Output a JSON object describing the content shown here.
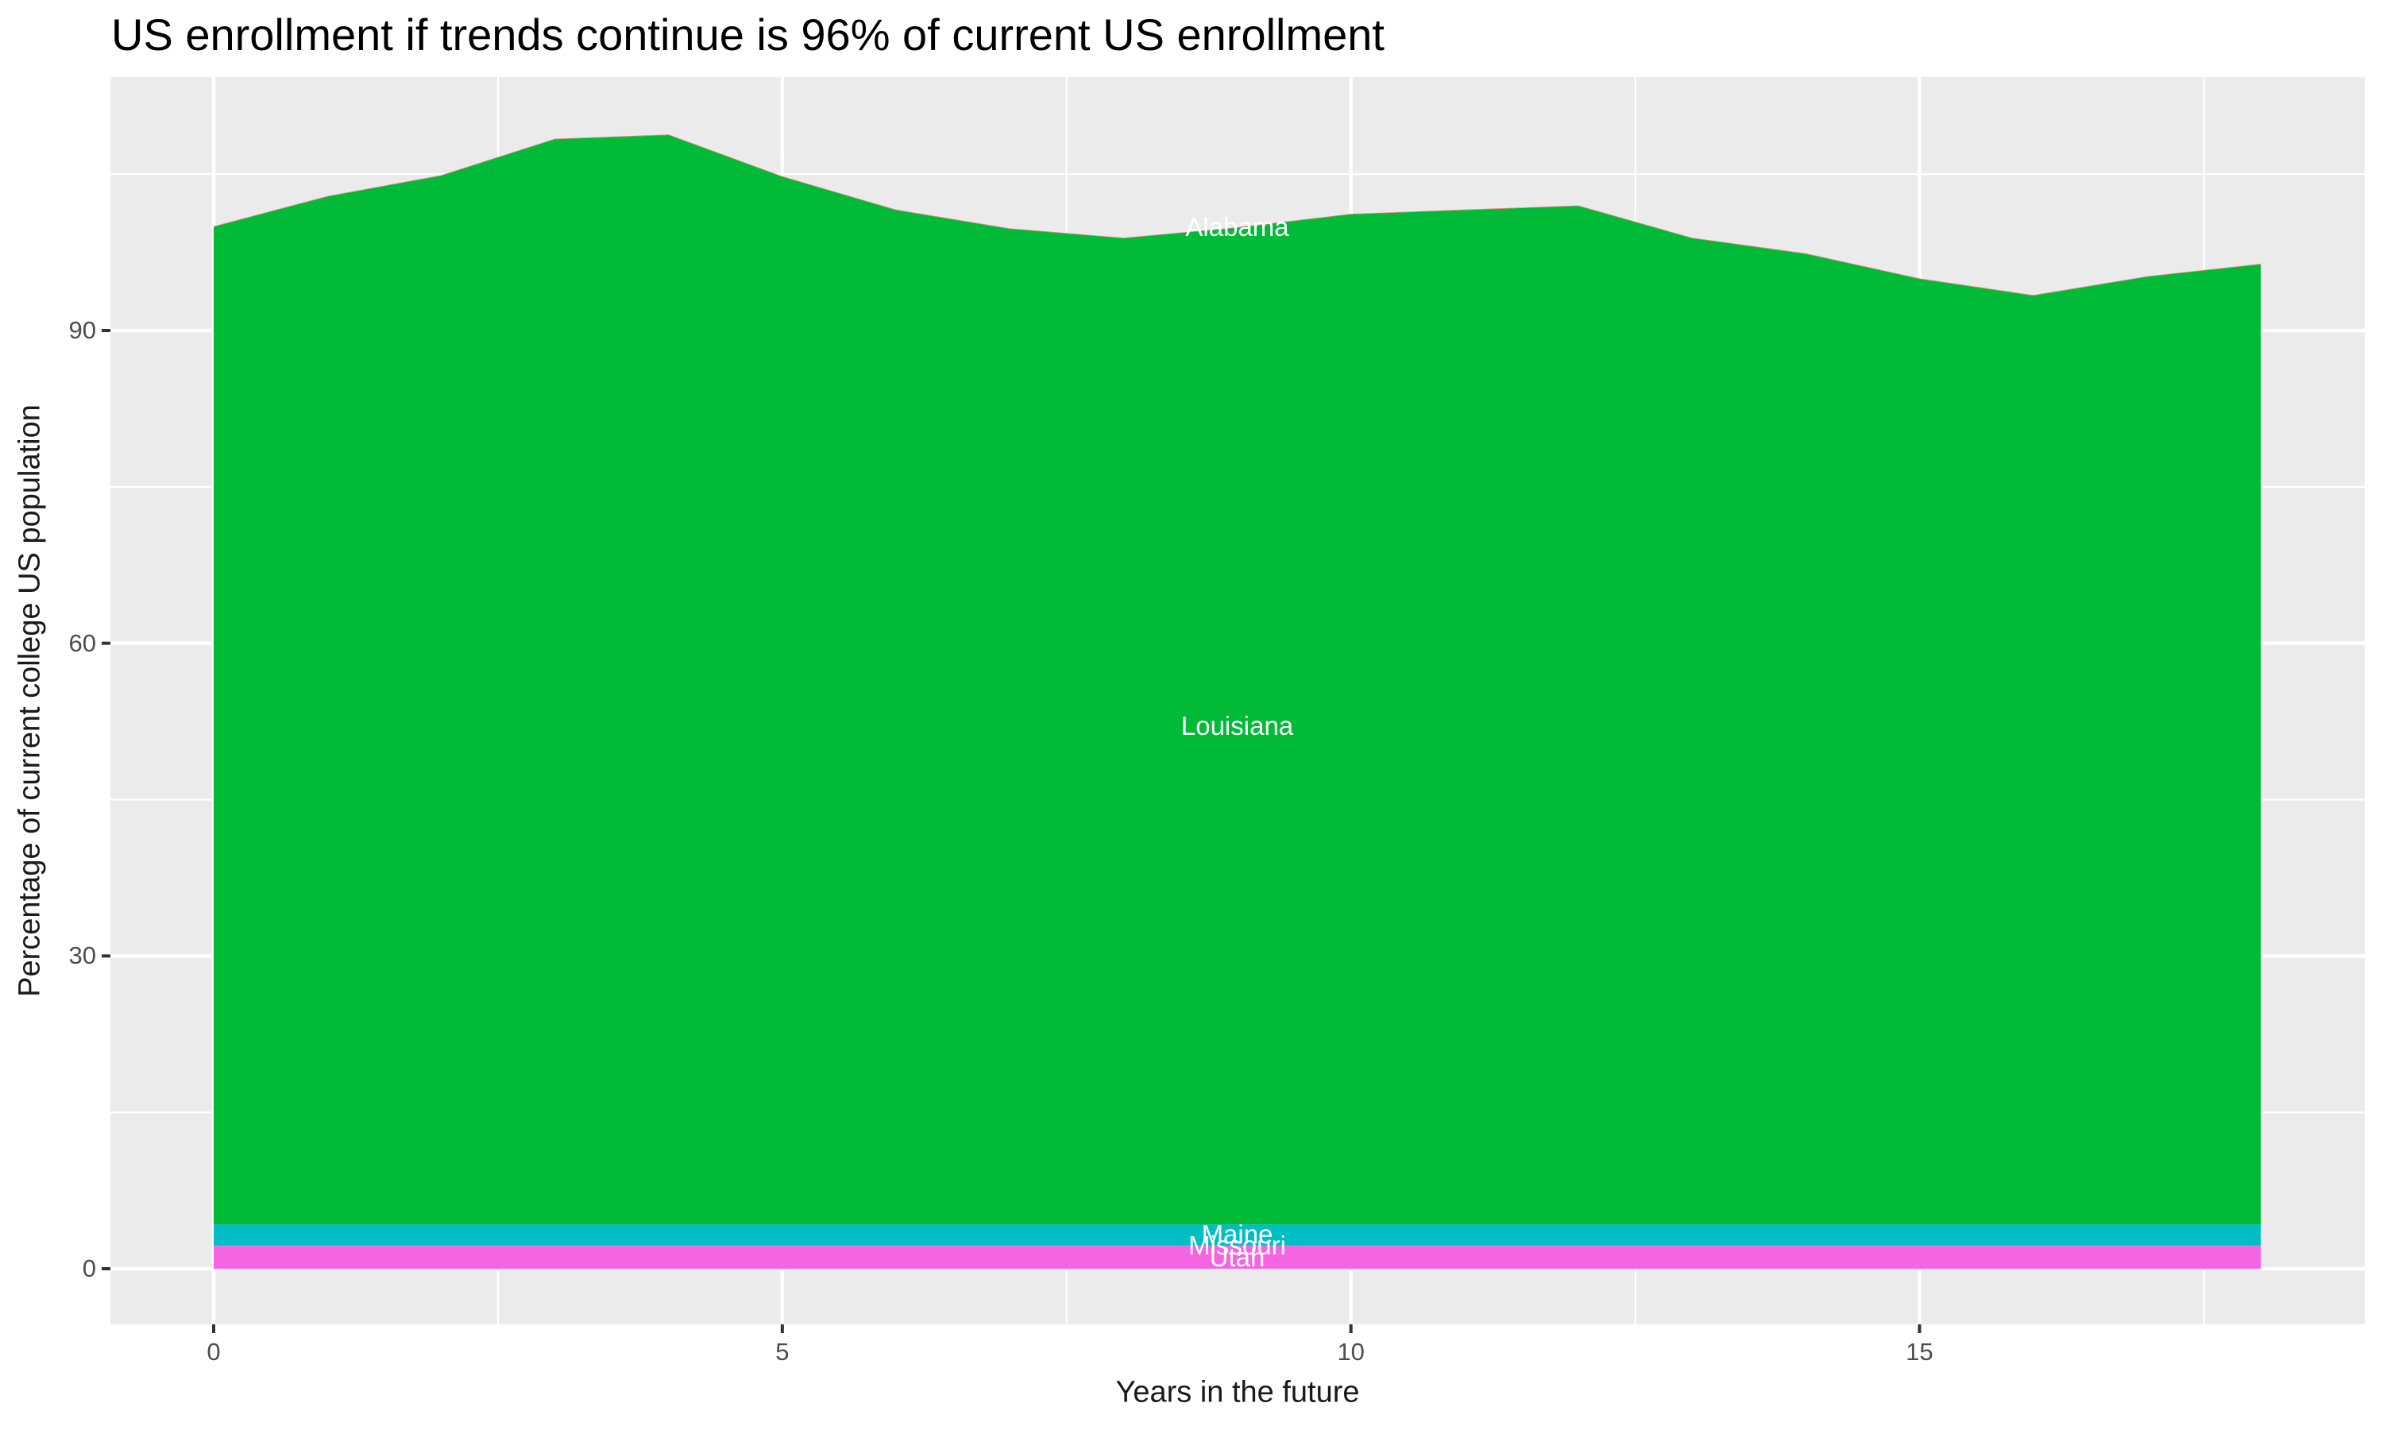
{
  "title": "US enrollment if trends continue is 96% of current US enrollment",
  "axes": {
    "x_title": "Years in the future",
    "y_title": "Percentage of current college US population"
  },
  "chart_data": {
    "type": "area",
    "subtype": "stacked-area",
    "title": "US enrollment if trends continue is 96% of current US enrollment",
    "xlabel": "Years in the future",
    "ylabel": "Percentage of current college US population",
    "x": [
      0,
      1,
      2,
      3,
      4,
      5,
      6,
      7,
      8,
      9,
      10,
      11,
      12,
      13,
      14,
      15,
      16,
      17,
      18
    ],
    "x_tick_labels": [
      "0",
      "5",
      "10",
      "15"
    ],
    "x_tick_values": [
      0,
      5,
      10,
      15
    ],
    "y_tick_labels": [
      "0",
      "30",
      "60",
      "90"
    ],
    "y_tick_values": [
      0,
      30,
      60,
      90
    ],
    "xlim": [
      0,
      18
    ],
    "ylim": [
      0,
      109
    ],
    "grid": "white major and minor gridlines on gray panel",
    "legend_position": "none (direct white labels on areas)",
    "panel_background": "#EBEBEB",
    "gridline_color": "#FFFFFF",
    "tick_text_color": "#4D4D4D",
    "stack_order_bottom_to_top": [
      "Utah",
      "Missouri",
      "Maine",
      "Louisiana",
      "Alabama"
    ],
    "totals": [
      100.0,
      102.9,
      104.9,
      108.4,
      108.8,
      104.8,
      101.6,
      99.8,
      98.9,
      99.9,
      101.2,
      101.6,
      102.0,
      98.9,
      97.4,
      95.0,
      93.4,
      95.2,
      96.4
    ],
    "label_x_year": 9,
    "series": [
      {
        "name": "Utah",
        "color": "#F564E3",
        "values": [
          2.2,
          2.2,
          2.2,
          2.2,
          2.2,
          2.2,
          2.2,
          2.2,
          2.2,
          2.2,
          2.2,
          2.2,
          2.2,
          2.2,
          2.2,
          2.2,
          2.2,
          2.2,
          2.2
        ]
      },
      {
        "name": "Missouri",
        "color": "#619CFF",
        "values": [
          0.05,
          0.05,
          0.05,
          0.05,
          0.05,
          0.05,
          0.05,
          0.05,
          0.05,
          0.05,
          0.05,
          0.05,
          0.05,
          0.05,
          0.05,
          0.05,
          0.05,
          0.05,
          0.05
        ]
      },
      {
        "name": "Maine",
        "color": "#00BFC4",
        "values": [
          2.0,
          2.0,
          2.0,
          2.0,
          2.0,
          2.0,
          2.0,
          2.0,
          2.0,
          2.0,
          2.0,
          2.0,
          2.0,
          2.0,
          2.0,
          2.0,
          2.0,
          2.0,
          2.0
        ]
      },
      {
        "name": "Louisiana",
        "color": "#00BA38",
        "values": [
          95.7,
          98.6,
          100.6,
          104.1,
          104.5,
          100.5,
          97.3,
          95.5,
          94.6,
          95.6,
          96.9,
          97.3,
          97.7,
          94.6,
          93.1,
          90.7,
          89.1,
          90.9,
          92.1
        ]
      },
      {
        "name": "Alabama",
        "color": "#F8766D",
        "values": [
          0.05,
          0.05,
          0.05,
          0.05,
          0.05,
          0.05,
          0.05,
          0.05,
          0.05,
          0.05,
          0.05,
          0.05,
          0.05,
          0.05,
          0.05,
          0.05,
          0.05,
          0.05,
          0.05
        ]
      }
    ]
  }
}
